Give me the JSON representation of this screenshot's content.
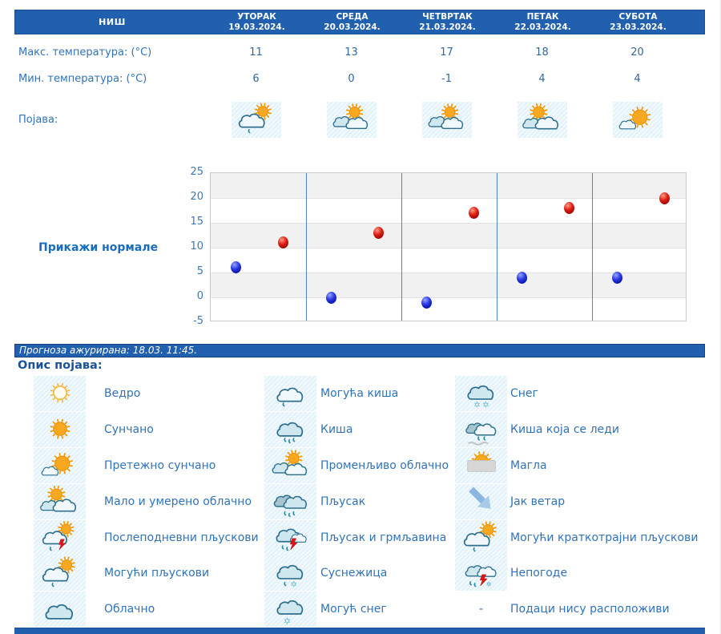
{
  "colors": {
    "header_bg": "#2160ae",
    "label_blue": "#3173b8",
    "value_blue": "#33679b",
    "link_blue": "#1a6dbe",
    "section_title_blue": "#1b5299",
    "max_dot_red": "#cc1111",
    "min_dot_blue": "#1d2fd0",
    "day_separator_blue": "#4f86c2"
  },
  "forecast": {
    "city": "НИШ",
    "row_labels": {
      "max": "Макс. температура: (°C)",
      "min": "Мин. температура: (°C)",
      "pojava": "Појава:"
    },
    "days": [
      {
        "name": "УТОРАК",
        "date": "19.03.2024.",
        "max": "11",
        "min": "6",
        "icon": "cloud-sun-drop-icon"
      },
      {
        "name": "СРЕДА",
        "date": "20.03.2024.",
        "max": "13",
        "min": "0",
        "icon": "clouds-sun-icon"
      },
      {
        "name": "ЧЕТВРТАК",
        "date": "21.03.2024.",
        "max": "17",
        "min": "-1",
        "icon": "clouds-sun-icon"
      },
      {
        "name": "ПЕТАК",
        "date": "22.03.2024.",
        "max": "18",
        "min": "4",
        "icon": "cloud-sun-icon"
      },
      {
        "name": "СУБОТА",
        "date": "23.03.2024.",
        "max": "20",
        "min": "4",
        "icon": "sun-small-cloud-icon"
      }
    ]
  },
  "chart": {
    "normals_label": "Прикажи нормале"
  },
  "chart_data": {
    "type": "scatter",
    "x_categories": [
      "19.03.2024.",
      "20.03.2024.",
      "21.03.2024.",
      "22.03.2024.",
      "23.03.2024."
    ],
    "series": [
      {
        "name": "Макс. температура (°C)",
        "color": "#cc1111",
        "values": [
          11,
          13,
          17,
          18,
          20
        ]
      },
      {
        "name": "Мин. температура (°C)",
        "color": "#1d2fd0",
        "values": [
          6,
          0,
          -1,
          4,
          4
        ]
      }
    ],
    "ylim": [
      -5,
      25
    ],
    "yticks": [
      25,
      20,
      15,
      10,
      5,
      0,
      -5
    ],
    "grid": true,
    "legend_position": "none",
    "banding": "alternating gray/white horizontal bands every 5 units, blue vertical separators between days"
  },
  "update_bar": {
    "text": "Прогноза ажурирана:  18.03. 11:45."
  },
  "legend": {
    "title": "Опис појава:",
    "rows": [
      [
        {
          "icon": "sun-outline-icon",
          "label": "Ведро"
        },
        {
          "icon": "cloud-drop-icon",
          "label": "Могућа киша"
        },
        {
          "icon": "cloud-snow-icon",
          "label": "Снег"
        }
      ],
      [
        {
          "icon": "sun-icon",
          "label": "Сунчано"
        },
        {
          "icon": "cloud-drops-icon",
          "label": "Киша"
        },
        {
          "icon": "cloud-freezing-rain-icon",
          "label": "Киша која се леди"
        }
      ],
      [
        {
          "icon": "sun-small-cloud-icon",
          "label": "Претежно сунчано"
        },
        {
          "icon": "clouds-sun-icon",
          "label": "Променљиво облачно"
        },
        {
          "icon": "fog-sun-icon",
          "label": "Магла"
        }
      ],
      [
        {
          "icon": "cloud-sun-icon",
          "label": "Мало и умерено облачно"
        },
        {
          "icon": "dark-cloud-drops-icon",
          "label": "Пљусак"
        },
        {
          "icon": "wind-arrow-icon",
          "label": "Јак ветар"
        }
      ],
      [
        {
          "icon": "cloud-sun-bolt-icon",
          "label": "Послеподневни пљускови"
        },
        {
          "icon": "cloud-bolt-drops-icon",
          "label": "Пљусак и грмљавина"
        },
        {
          "icon": "cloud-sun-drop-icon",
          "label": "Могући краткотрајни пљускови"
        }
      ],
      [
        {
          "icon": "cloud-sun-drop-icon",
          "label": "Могући пљускови"
        },
        {
          "icon": "cloud-drop-flake-icon",
          "label": "Суснежица"
        },
        {
          "icon": "storm-icon",
          "label": "Непогоде"
        }
      ],
      [
        {
          "icon": "cloud-icon",
          "label": "Облачно"
        },
        {
          "icon": "cloud-flake-icon",
          "label": "Могућ снег"
        },
        {
          "icon": "dash",
          "label": "Подаци нису расположиви"
        }
      ]
    ]
  }
}
